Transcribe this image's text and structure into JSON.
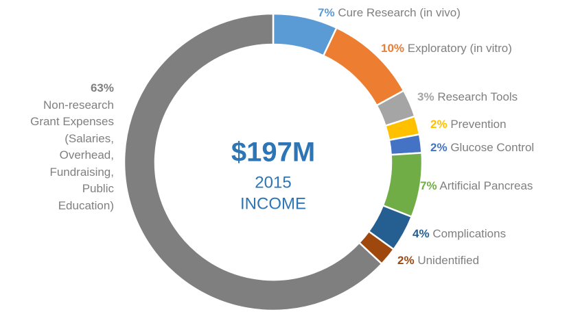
{
  "chart_data": {
    "type": "donut",
    "categories": [
      "Cure Research (in vivo)",
      "Exploratory (in vitro)",
      "Research Tools",
      "Prevention",
      "Glucose Control",
      "Artificial Pancreas",
      "Complications",
      "Unidentified",
      "Non-research Grant Expenses (Salaries, Overhead, Fundraising, Public Education)"
    ],
    "values": [
      7,
      10,
      3,
      2,
      2,
      7,
      4,
      2,
      63
    ],
    "value_labels": [
      "7%",
      "10%",
      "3%",
      "2%",
      "2%",
      "7%",
      "4%",
      "2%",
      "63%"
    ],
    "colors": [
      "#5b9bd5",
      "#ed7d31",
      "#a5a5a5",
      "#ffc000",
      "#4472c4",
      "#70ad47",
      "#255e91",
      "#9e480e",
      "#7f7f7f"
    ],
    "center_text": [
      "$197M",
      "2015",
      "INCOME"
    ]
  }
}
